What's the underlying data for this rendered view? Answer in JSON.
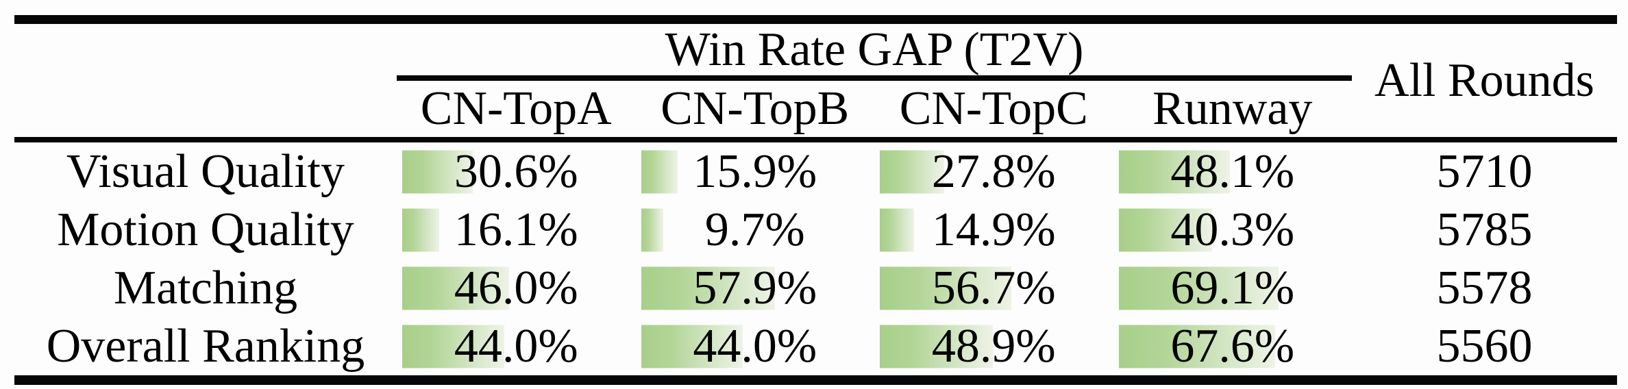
{
  "table": {
    "group_header": "Win Rate GAP (T2V)",
    "all_rounds_header": "All Rounds",
    "columns": [
      "CN-TopA",
      "CN-TopB",
      "CN-TopC",
      "Runway"
    ],
    "rows": [
      {
        "label": "Visual Quality",
        "values": [
          "30.6%",
          "15.9%",
          "27.8%",
          "48.1%"
        ],
        "numeric": [
          30.6,
          15.9,
          27.8,
          48.1
        ],
        "all_rounds": "5710"
      },
      {
        "label": "Motion Quality",
        "values": [
          "16.1%",
          "9.7%",
          "14.9%",
          "40.3%"
        ],
        "numeric": [
          16.1,
          9.7,
          14.9,
          40.3
        ],
        "all_rounds": "5785"
      },
      {
        "label": "Matching",
        "values": [
          "46.0%",
          "57.9%",
          "56.7%",
          "69.1%"
        ],
        "numeric": [
          46.0,
          57.9,
          56.7,
          69.1
        ],
        "all_rounds": "5578"
      },
      {
        "label": "Overall Ranking",
        "values": [
          "44.0%",
          "44.0%",
          "48.9%",
          "67.6%"
        ],
        "numeric": [
          44.0,
          44.0,
          48.9,
          67.6
        ],
        "all_rounds": "5560"
      }
    ],
    "bar_color_start": "#a7cf89",
    "bar_color_end": "#eef3e6",
    "rule_color": "#060606"
  },
  "chart_data": {
    "type": "table",
    "title": "Win Rate GAP (T2V)",
    "columns": [
      "CN-TopA",
      "CN-TopB",
      "CN-TopC",
      "Runway",
      "All Rounds"
    ],
    "row_labels": [
      "Visual Quality",
      "Motion Quality",
      "Matching",
      "Overall Ranking"
    ],
    "win_rate_gap_percent": [
      [
        30.6,
        15.9,
        27.8,
        48.1
      ],
      [
        16.1,
        9.7,
        14.9,
        40.3
      ],
      [
        46.0,
        57.9,
        56.7,
        69.1
      ],
      [
        44.0,
        44.0,
        48.9,
        67.6
      ]
    ],
    "all_rounds": [
      5710,
      5785,
      5578,
      5560
    ],
    "layout": "green left-aligned gradient data bars behind percentages, bar width proportional to value; thick top/bottom rules, thin mid rules (booktabs style)"
  }
}
